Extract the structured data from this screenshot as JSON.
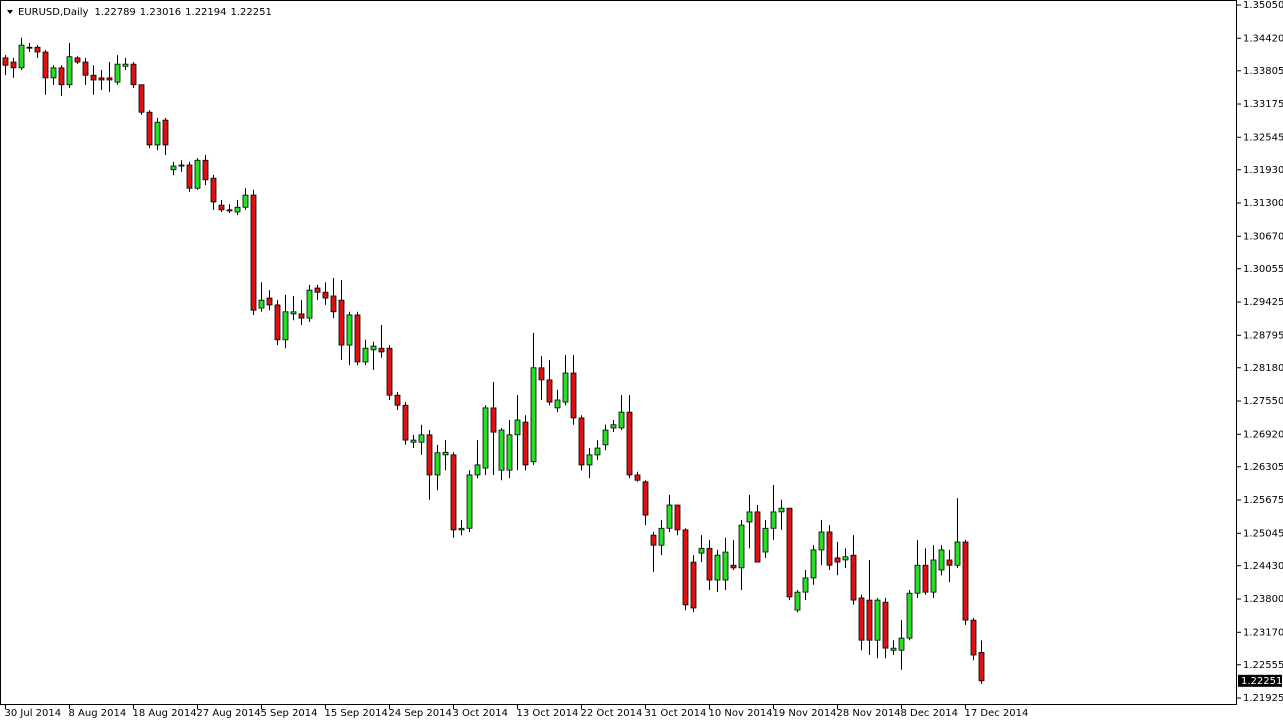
{
  "chart_data": {
    "type": "candlestick",
    "title": "EURUSD,Daily",
    "categories": [
      "30 Jul 2014",
      null,
      null,
      null,
      null,
      null,
      null,
      null,
      "8 Aug 2014",
      null,
      null,
      null,
      null,
      null,
      null,
      null,
      "18 Aug 2014",
      null,
      null,
      null,
      null,
      null,
      null,
      null,
      "27 Aug 2014",
      null,
      null,
      null,
      null,
      null,
      null,
      null,
      "5 Sep 2014",
      null,
      null,
      null,
      null,
      null,
      null,
      null,
      "15 Sep 2014",
      null,
      null,
      null,
      null,
      null,
      null,
      null,
      "24 Sep 2014",
      null,
      null,
      null,
      null,
      null,
      null,
      null,
      "3 Oct 2014",
      null,
      null,
      null,
      null,
      null,
      null,
      null,
      "13 Oct 2014",
      null,
      null,
      null,
      null,
      null,
      null,
      null,
      "22 Oct 2014",
      null,
      null,
      null,
      null,
      null,
      null,
      null,
      "31 Oct 2014",
      null,
      null,
      null,
      null,
      null,
      null,
      null,
      "10 Nov 2014",
      null,
      null,
      null,
      null,
      null,
      null,
      null,
      "19 Nov 2014",
      null,
      null,
      null,
      null,
      null,
      null,
      null,
      "28 Nov 2014",
      null,
      null,
      null,
      null,
      null,
      null,
      null,
      "8 Dec 2014",
      null,
      null,
      null,
      null,
      null,
      null,
      null,
      "17 Dec 2014",
      null,
      null
    ],
    "open": [
      1.3405,
      1.3397,
      1.3386,
      1.3425,
      1.3425,
      1.3416,
      1.3367,
      1.3386,
      1.3354,
      1.3405,
      1.3397,
      1.3372,
      1.3367,
      1.3367,
      1.3359,
      1.3389,
      1.3393,
      1.3354,
      1.3302,
      1.324,
      1.3287,
      1.3193,
      1.32,
      1.3202,
      1.3158,
      1.3211,
      1.3177,
      1.3126,
      1.3117,
      1.3113,
      1.3122,
      1.3145,
      1.2931,
      1.295,
      1.2937,
      1.2871,
      1.292,
      1.292,
      1.2912,
      1.2969,
      1.2961,
      1.2954,
      1.2946,
      1.2861,
      1.2918,
      1.2829,
      1.2852,
      1.2855,
      1.2855,
      1.2766,
      1.2747,
      1.2677,
      1.2677,
      1.2691,
      1.2615,
      1.2653,
      1.2653,
      1.2511,
      1.2514,
      1.2615,
      1.2628,
      1.2742,
      1.2624,
      1.2624,
      1.2691,
      1.2715,
      1.264,
      1.2818,
      1.2795,
      1.2742,
      1.2753,
      1.2808,
      1.2723,
      1.2634,
      1.2653,
      1.2672,
      1.2704,
      1.2704,
      1.2734,
      1.2615,
      1.2602,
      1.2501,
      1.2482,
      1.2514,
      1.2558,
      1.2511,
      1.245,
      1.2467,
      1.2476,
      1.2416,
      1.2416,
      1.2444,
      1.2439,
      1.2526,
      1.2545,
      1.2469,
      1.2514,
      1.2545,
      1.2552,
      1.2359,
      1.2393,
      1.242,
      1.2473,
      1.2507,
      1.2458,
      1.2454,
      1.2463,
      1.2382,
      1.2378,
      1.2302,
      1.2374,
      1.2283,
      1.2283,
      1.2306,
      1.2391,
      1.2444,
      1.2393,
      1.2435,
      1.2454,
      1.2444,
      1.2488,
      1.234,
      1.22789
    ],
    "high": [
      1.341,
      1.3405,
      1.3443,
      1.3433,
      1.3429,
      1.342,
      1.3391,
      1.3391,
      1.3433,
      1.3408,
      1.3405,
      1.3391,
      1.3382,
      1.3397,
      1.341,
      1.3405,
      1.3397,
      1.3354,
      1.3306,
      1.3291,
      1.3291,
      1.3208,
      1.3211,
      1.3208,
      1.3215,
      1.3221,
      1.3183,
      1.3136,
      1.3128,
      1.3136,
      1.3158,
      1.3155,
      1.298,
      1.2965,
      1.2946,
      1.2956,
      1.2954,
      1.2946,
      1.2975,
      1.2975,
      1.298,
      1.2988,
      1.2984,
      1.2924,
      1.2924,
      1.2871,
      1.2867,
      1.2899,
      1.2861,
      1.2772,
      1.2753,
      1.2691,
      1.271,
      1.27,
      1.2672,
      1.2681,
      1.2658,
      1.253,
      1.2624,
      1.2681,
      1.2747,
      1.2791,
      1.2704,
      1.2719,
      1.2766,
      1.2728,
      1.2884,
      1.284,
      1.2833,
      1.2776,
      1.2842,
      1.2842,
      1.2728,
      1.2666,
      1.2681,
      1.271,
      1.2719,
      1.2766,
      1.2766,
      1.2621,
      1.2605,
      1.2507,
      1.253,
      1.2577,
      1.2558,
      1.2514,
      1.2463,
      1.2501,
      1.2492,
      1.2473,
      1.2496,
      1.2492,
      1.253,
      1.2577,
      1.2558,
      1.253,
      1.2596,
      1.2568,
      1.2552,
      1.2397,
      1.2435,
      1.2482,
      1.253,
      1.252,
      1.2488,
      1.2476,
      1.2501,
      1.2388,
      1.2454,
      1.2382,
      1.2382,
      1.2302,
      1.234,
      1.2397,
      1.2492,
      1.2476,
      1.2482,
      1.2482,
      1.2473,
      1.2571,
      1.2492,
      1.2344,
      1.23016
    ],
    "low": [
      1.3372,
      1.3367,
      1.3382,
      1.3416,
      1.3405,
      1.3335,
      1.3354,
      1.3333,
      1.3348,
      1.3393,
      1.3354,
      1.3335,
      1.3344,
      1.334,
      1.3354,
      1.3382,
      1.3348,
      1.3297,
      1.3234,
      1.323,
      1.3221,
      1.3183,
      1.3189,
      1.3151,
      1.3155,
      1.3164,
      1.3117,
      1.3113,
      1.3111,
      1.3107,
      1.3117,
      1.2918,
      1.2924,
      1.2927,
      1.2861,
      1.2855,
      1.2908,
      1.2899,
      1.2905,
      1.2946,
      1.2937,
      1.2912,
      1.2833,
      1.2823,
      1.2823,
      1.2823,
      1.2814,
      1.2837,
      1.2757,
      1.2738,
      1.2672,
      1.2666,
      1.2653,
      1.2568,
      1.2586,
      1.2624,
      1.2496,
      1.2501,
      1.2507,
      1.2609,
      1.2615,
      1.2615,
      1.2605,
      1.2609,
      1.2624,
      1.2624,
      1.2634,
      1.2757,
      1.2747,
      1.2734,
      1.2747,
      1.271,
      1.2624,
      1.2609,
      1.2643,
      1.2662,
      1.2696,
      1.27,
      1.2609,
      1.2602,
      1.252,
      1.2431,
      1.2463,
      1.2507,
      1.2501,
      1.2359,
      1.2355,
      1.245,
      1.2397,
      1.2393,
      1.2397,
      1.2435,
      1.2397,
      1.2476,
      1.245,
      1.2458,
      1.2492,
      1.2511,
      1.2378,
      1.2355,
      1.2378,
      1.2407,
      1.2444,
      1.2435,
      1.2425,
      1.2439,
      1.2369,
      1.2283,
      1.2274,
      1.2268,
      1.2268,
      1.2274,
      1.2246,
      1.2302,
      1.2382,
      1.2388,
      1.2382,
      1.2425,
      1.2412,
      1.2439,
      1.2331,
      1.2264,
      1.22194
    ],
    "close": [
      1.3391,
      1.3386,
      1.3429,
      1.3424,
      1.3416,
      1.3367,
      1.3386,
      1.3354,
      1.3407,
      1.3397,
      1.3372,
      1.3363,
      1.3363,
      1.3363,
      1.3393,
      1.3393,
      1.3354,
      1.3302,
      1.324,
      1.3283,
      1.324,
      1.32,
      1.3202,
      1.3158,
      1.3211,
      1.3174,
      1.3132,
      1.3117,
      1.3115,
      1.3122,
      1.3145,
      1.2927,
      1.2946,
      1.2937,
      1.2871,
      1.2924,
      1.2924,
      1.2912,
      1.2965,
      1.2961,
      1.295,
      1.2924,
      1.2861,
      1.2918,
      1.2829,
      1.2855,
      1.2859,
      1.2848,
      1.2766,
      1.2747,
      1.2681,
      1.2681,
      1.2691,
      1.2615,
      1.2657,
      1.2658,
      1.2511,
      1.2514,
      1.2615,
      1.2634,
      1.2742,
      1.2696,
      1.27,
      1.2691,
      1.2719,
      1.2634,
      1.2818,
      1.2795,
      1.2753,
      1.2757,
      1.2808,
      1.2723,
      1.2634,
      1.2653,
      1.2666,
      1.27,
      1.271,
      1.2734,
      1.2615,
      1.2605,
      1.2539,
      1.2482,
      1.2514,
      1.2558,
      1.2511,
      1.2369,
      1.2363,
      1.2476,
      1.2416,
      1.2463,
      1.2469,
      1.2439,
      1.252,
      1.2545,
      1.245,
      1.2514,
      1.2545,
      1.2552,
      1.2384,
      1.2393,
      1.242,
      1.2473,
      1.2507,
      1.2444,
      1.245,
      1.246,
      1.2378,
      1.2302,
      1.2302,
      1.2378,
      1.2287,
      1.2287,
      1.2306,
      1.2391,
      1.2444,
      1.2393,
      1.2454,
      1.2473,
      1.2444,
      1.2488,
      1.234,
      1.2274,
      1.22251
    ],
    "up_color": "#22e022",
    "down_color": "#e01010",
    "ylim": [
      1.21793,
      1.35145
    ],
    "yticks": [
      {
        "value": 1.3505,
        "label": "1.35050"
      },
      {
        "value": 1.3442,
        "label": "1.34420"
      },
      1.33805,
      1.33175,
      1.32545,
      {
        "value": 1.3193,
        "label": "1.31930"
      },
      {
        "value": 1.313,
        "label": "1.31300"
      },
      {
        "value": 1.3067,
        "label": "1.30670"
      },
      1.30055,
      1.29425,
      1.28795,
      {
        "value": 1.2818,
        "label": "1.28180"
      },
      {
        "value": 1.2755,
        "label": "1.27550"
      },
      {
        "value": 1.2692,
        "label": "1.26920"
      },
      1.26305,
      1.25675,
      1.25045,
      {
        "value": 1.2443,
        "label": "1.24430"
      },
      {
        "value": 1.238,
        "label": "1.23800"
      },
      {
        "value": 1.2317,
        "label": "1.23170"
      },
      1.22555,
      1.21925
    ],
    "grid": false
  }
}
